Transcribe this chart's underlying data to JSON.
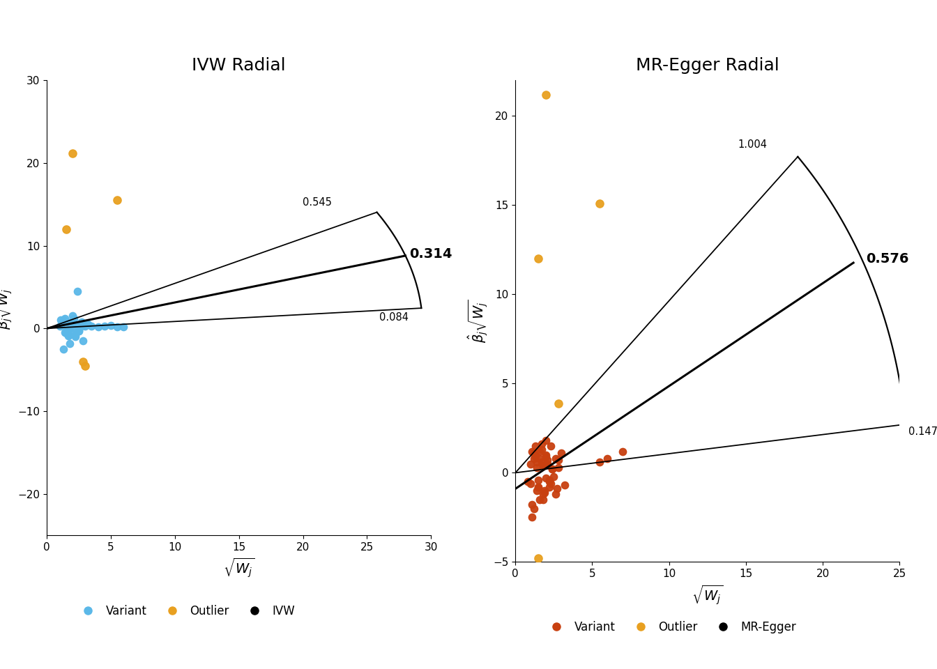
{
  "title_left": "IVW Radial",
  "title_right": "MR-Egger Radial",
  "ivw_slope": 0.314,
  "ivw_upper": 0.545,
  "ivw_lower": 0.084,
  "egger_intercept": -0.9,
  "egger_slope": 0.576,
  "egger_upper": 1.004,
  "egger_lower": 0.147,
  "ivw_xlim": [
    0,
    30
  ],
  "ivw_ylim": [
    -25,
    30
  ],
  "egger_xlim": [
    0,
    25
  ],
  "egger_ylim": [
    -5,
    22
  ],
  "color_variant_ivw": "#5BB8E8",
  "color_outlier": "#E8A020",
  "color_variant_egger": "#C84010",
  "color_line": "#000000",
  "ivw_variants_x": [
    1.0,
    1.2,
    1.3,
    1.4,
    1.5,
    1.6,
    1.7,
    1.8,
    1.9,
    2.0,
    2.1,
    2.2,
    2.3,
    2.4,
    2.5,
    2.6,
    2.7,
    2.8,
    3.0,
    3.2,
    3.5,
    4.0,
    4.5,
    5.0,
    5.5,
    6.0,
    1.3,
    1.4,
    1.6,
    1.8,
    2.0,
    2.2,
    2.5,
    1.1,
    1.5,
    2.1,
    2.8,
    1.7
  ],
  "ivw_variants_y": [
    0.3,
    0.5,
    1.0,
    1.2,
    -0.3,
    0.8,
    -0.8,
    0.3,
    -0.5,
    1.5,
    0.6,
    -0.8,
    0.4,
    4.5,
    -0.3,
    0.2,
    0.8,
    -1.5,
    0.3,
    0.5,
    0.3,
    0.2,
    0.3,
    0.4,
    0.2,
    0.2,
    -2.5,
    -0.5,
    -0.2,
    -1.8,
    0.1,
    -1.0,
    -0.3,
    1.0,
    -0.6,
    1.2,
    0.4,
    -0.9
  ],
  "ivw_outliers_x": [
    1.5,
    2.0,
    5.5,
    3.0,
    2.8
  ],
  "ivw_outliers_y": [
    12.0,
    21.2,
    15.5,
    -4.5,
    -4.0
  ],
  "egger_variants_x": [
    0.8,
    1.0,
    1.1,
    1.2,
    1.3,
    1.4,
    1.5,
    1.6,
    1.7,
    1.8,
    1.9,
    2.0,
    2.0,
    2.1,
    2.2,
    2.3,
    2.4,
    2.5,
    2.6,
    2.7,
    2.8,
    3.0,
    3.2,
    1.1,
    1.3,
    1.5,
    1.7,
    1.9,
    2.1,
    2.3,
    1.2,
    1.4,
    1.6,
    1.8,
    2.0,
    2.2,
    2.4,
    1.0,
    1.2,
    1.4,
    1.6,
    1.8,
    2.0,
    2.2,
    2.6,
    2.8,
    1.1,
    1.3,
    1.5,
    1.7,
    1.9,
    2.1,
    5.5,
    6.0,
    7.0
  ],
  "egger_variants_y": [
    -0.5,
    0.5,
    1.2,
    0.8,
    1.5,
    0.3,
    -0.8,
    1.2,
    0.6,
    -1.2,
    0.4,
    1.0,
    -0.3,
    0.7,
    -0.5,
    1.5,
    0.2,
    -0.2,
    0.8,
    -0.9,
    0.3,
    1.1,
    -0.7,
    -1.8,
    0.9,
    -0.4,
    1.3,
    -1.0,
    0.5,
    -0.6,
    -2.0,
    0.6,
    -1.5,
    0.4,
    1.8,
    -0.8,
    0.2,
    -0.6,
    1.1,
    -1.0,
    0.8,
    -1.5,
    0.9,
    -0.4,
    -1.2,
    0.7,
    -2.5,
    1.0,
    -0.8,
    1.6,
    -1.1,
    0.5,
    0.6,
    0.8,
    1.2
  ],
  "egger_outliers_x": [
    2.0,
    1.5,
    5.5,
    2.8,
    1.5
  ],
  "egger_outliers_y": [
    21.2,
    12.0,
    15.1,
    3.9,
    -4.8
  ],
  "annotation_ivw_upper": "0.545",
  "annotation_ivw_center": "0.314",
  "annotation_ivw_lower": "0.084",
  "annotation_egger_upper": "1.004",
  "annotation_egger_center": "0.576",
  "annotation_egger_lower": "0.147"
}
